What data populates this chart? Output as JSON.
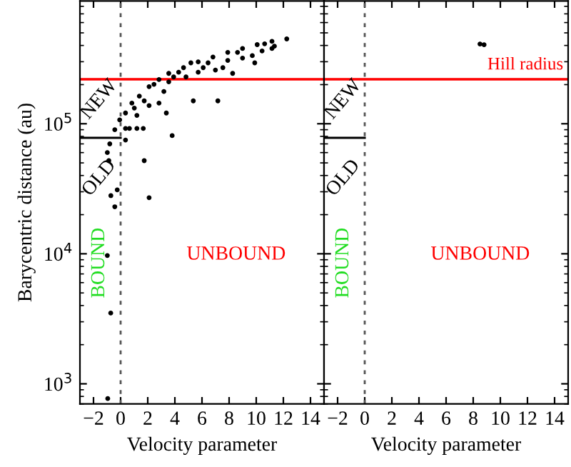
{
  "chart_data": [
    {
      "type": "scatter",
      "xlabel": "Velocity parameter",
      "ylabel": "Barycentric distance (au)",
      "log": "y",
      "grid": false,
      "xlim": [
        -3,
        15
      ],
      "xticks": [
        {
          "value": -2,
          "label": "−2"
        },
        0,
        2,
        4,
        6,
        8,
        10,
        12,
        14
      ],
      "ylim": [
        700,
        880000
      ],
      "yticks": [
        {
          "value": 1000,
          "label": "10$^{3}$"
        },
        {
          "value": 10000,
          "label": "10$^{4}$"
        },
        {
          "value": 100000,
          "label": "10$^{5}$"
        }
      ],
      "ref_lines": [
        {
          "axis": "x",
          "value": 0,
          "color": "#555555",
          "line_style": "dashed"
        },
        {
          "axis": "y",
          "value": 220000,
          "color": "#ff0000",
          "line_style": "solid"
        }
      ],
      "annotations": [
        "NEW",
        "OLD",
        "BOUND",
        "UNBOUND"
      ],
      "series": [
        {
          "marker": "circle",
          "color": "#000000",
          "x": [
            -0.8,
            -0.43,
            -0.07,
            0.36,
            0.83,
            1.38,
            2.1,
            2.83,
            3.55,
            4.64,
            5.72,
            6.81,
            7.9,
            8.99,
            10.07,
            11.16,
            12.25,
            11.34,
            10.43,
            9.89,
            8.99,
            7.9,
            7.54,
            8.26,
            6.45,
            5.72,
            4.82,
            4.28,
            3.55,
            3.19,
            2.46,
            1.74,
            1.01,
            2.1,
            2.83,
            3.37,
            5.36,
            7.17,
            1.2,
            0.65,
            1.2,
            1.67,
            0.36,
            0.36,
            3.8,
            1.74,
            -0.98,
            -0.87,
            -0.25,
            -0.72,
            -0.43,
            2.1,
            11.16,
            10.62,
            9.71,
            8.62,
            6.99,
            6.09,
            5.18,
            3.91,
            -0.98,
            -0.73,
            -0.95
          ],
          "values": [
            70000,
            90000,
            107000,
            121000,
            144000,
            163000,
            193000,
            219000,
            244000,
            270000,
            299000,
            326000,
            354000,
            379000,
            406000,
            430000,
            449000,
            395000,
            363000,
            294000,
            320000,
            307000,
            270000,
            244000,
            294000,
            249000,
            229000,
            249000,
            210000,
            177000,
            201000,
            150000,
            132000,
            138000,
            144000,
            121000,
            150000,
            150000,
            116000,
            92000,
            92000,
            92000,
            92000,
            75000,
            81000,
            52000,
            60000,
            52000,
            31000,
            28000,
            23000,
            27000,
            379000,
            412000,
            334000,
            354000,
            259000,
            270000,
            294000,
            229000,
            9700,
            3500,
            770
          ]
        },
        {
          "type": "line",
          "marker": "none",
          "color": "#000000",
          "x": [
            -3,
            0
          ],
          "values": [
            78000,
            78000
          ]
        }
      ]
    },
    {
      "type": "scatter",
      "xlabel": "Velocity parameter",
      "log": "y",
      "grid": false,
      "tick_labels": "x",
      "xlim": [
        -3,
        15
      ],
      "xticks": [
        {
          "value": -2,
          "label": "−2"
        },
        0,
        2,
        4,
        6,
        8,
        10,
        12,
        14
      ],
      "ylim": [
        700,
        880000
      ],
      "yticks": [
        1000,
        10000,
        100000
      ],
      "ref_lines": [
        {
          "axis": "x",
          "value": 0,
          "color": "#555555",
          "line_style": "dashed"
        },
        {
          "axis": "y",
          "value": 220000,
          "color": "#ff0000",
          "line_style": "solid",
          "label": "Hill radius"
        }
      ],
      "annotations": [
        "NEW",
        "OLD",
        "BOUND",
        "UNBOUND"
      ],
      "series": [
        {
          "marker": "circle",
          "color": "#000000",
          "x": [
            8.5,
            8.8
          ],
          "values": [
            410000,
            405000
          ]
        },
        {
          "type": "line",
          "marker": "none",
          "color": "#000000",
          "x": [
            -3,
            0
          ],
          "values": [
            78000,
            78000
          ]
        }
      ]
    }
  ]
}
